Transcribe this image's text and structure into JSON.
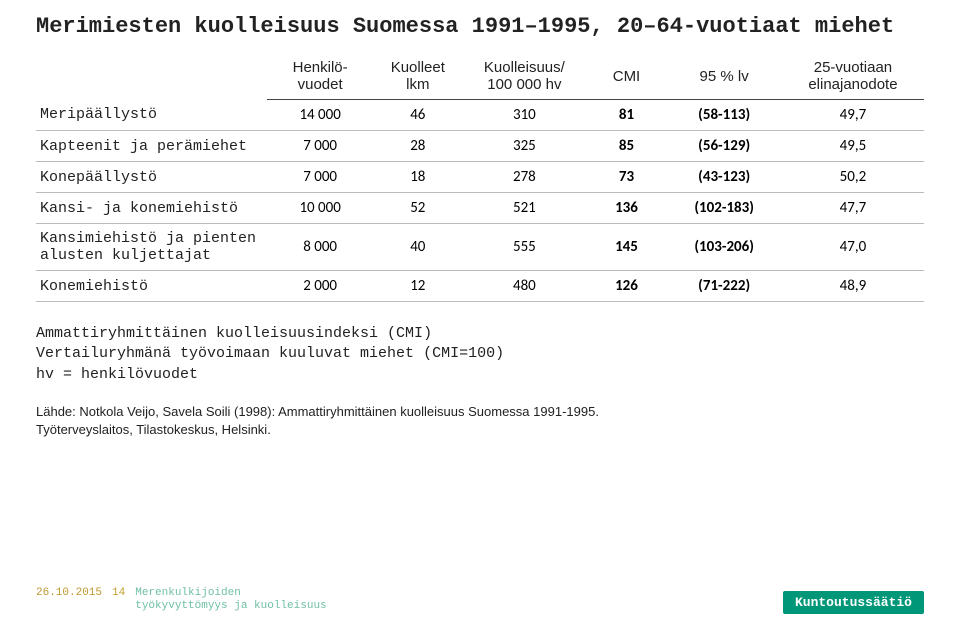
{
  "title": "Merimiesten kuolleisuus Suomessa 1991–1995, 20–64-vuotiaat miehet",
  "table": {
    "columns": [
      "",
      "Henkilö-\nvuodet",
      "Kuolleet\nlkm",
      "Kuolleisuus/\n100 000 hv",
      "CMI",
      "95 % lv",
      "25-vuotiaan\nelinajanodote"
    ],
    "col_widths": [
      "26%",
      "12%",
      "10%",
      "14%",
      "9%",
      "13%",
      "16%"
    ],
    "bold_cols": [
      4,
      5
    ],
    "rows": [
      {
        "label": "Meripäällystö",
        "cells": [
          "14 000",
          "46",
          "310",
          "81",
          "(58-113)",
          "49,7"
        ]
      },
      {
        "label": "Kapteenit ja perämiehet",
        "cells": [
          "7 000",
          "28",
          "325",
          "85",
          "(56-129)",
          "49,5"
        ]
      },
      {
        "label": "Konepäällystö",
        "cells": [
          "7 000",
          "18",
          "278",
          "73",
          "(43-123)",
          "50,2"
        ]
      },
      {
        "label": "Kansi- ja konemiehistö",
        "cells": [
          "10 000",
          "52",
          "521",
          "136",
          "(102-183)",
          "47,7"
        ]
      },
      {
        "label": "Kansimiehistö ja pienten alusten kuljettajat",
        "cells": [
          "8 000",
          "40",
          "555",
          "145",
          "(103-206)",
          "47,0"
        ]
      },
      {
        "label": "Konemiehistö",
        "cells": [
          "2 000",
          "12",
          "480",
          "126",
          "(71-222)",
          "48,9"
        ]
      }
    ]
  },
  "notes": {
    "l1": "Ammattiryhmittäinen kuolleisuusindeksi (CMI)",
    "l2": "Vertailuryhmänä työvoimaan kuuluvat miehet (CMI=100)",
    "l3": "hv = henkilövuodet"
  },
  "source": {
    "l1": "Lähde: Notkola Veijo, Savela Soili (1998): Ammattiryhmittäinen kuolleisuus Suomessa 1991-1995.",
    "l2": "Työterveyslaitos, Tilastokeskus, Helsinki."
  },
  "footer": {
    "date": "26.10.2015",
    "page": "14",
    "tag_l1": "Merenkulkijoiden",
    "tag_l2": "työkyvyttömyys ja kuolleisuus",
    "badge": "Kuntoutussäätiö"
  },
  "colors": {
    "teal": "#009779",
    "teal_light": "#6fbfa6",
    "gold": "#c0982f"
  }
}
